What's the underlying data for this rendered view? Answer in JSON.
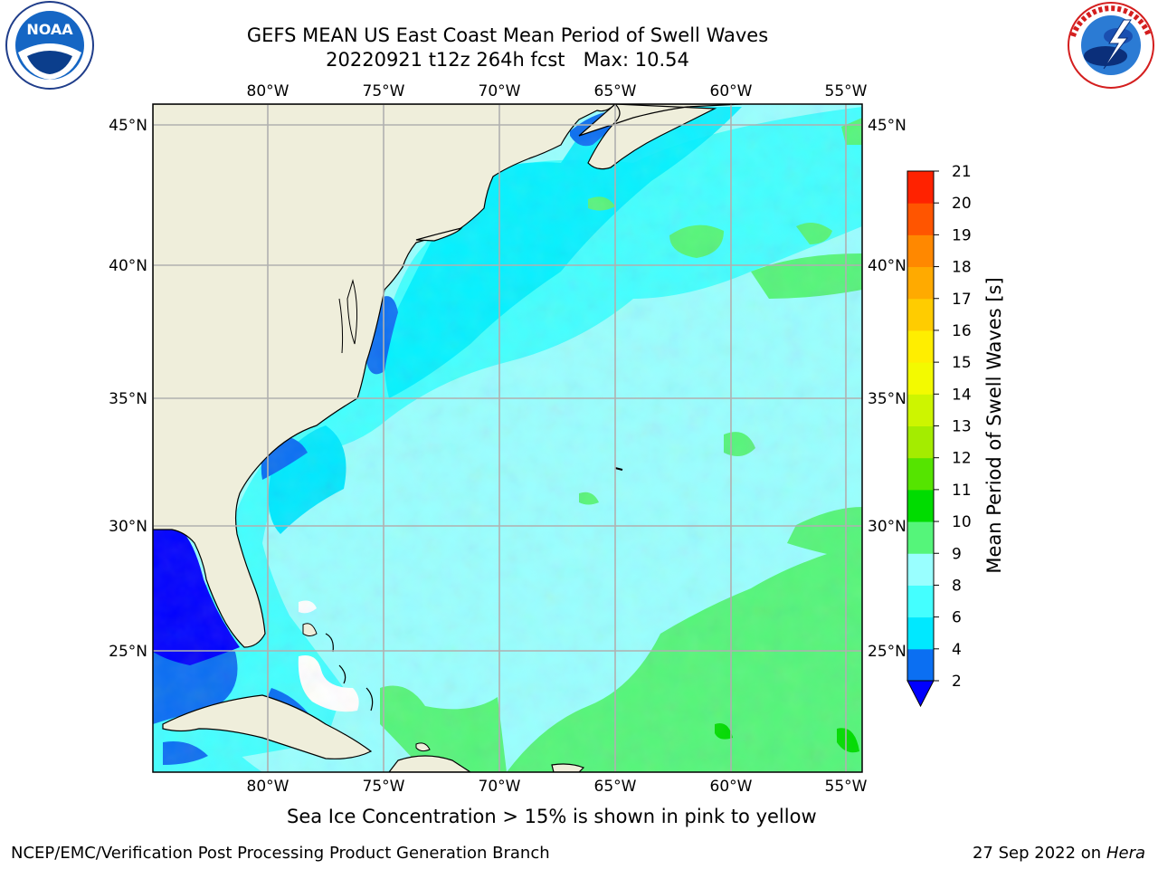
{
  "header": {
    "title_line1": "GEFS MEAN US East Coast Mean Period of Swell Waves",
    "title_line2": "20220921 t12z 264h fcst   Max: 10.54"
  },
  "logos": {
    "left": "noaa-logo",
    "left_text": "NOAA",
    "right": "nws-logo",
    "right_text": "NATIONAL WEATHER SERVICE"
  },
  "map": {
    "lon_labels": [
      "80°W",
      "75°W",
      "70°W",
      "65°W",
      "60°W",
      "55°W"
    ],
    "lat_labels": [
      "45°N",
      "40°N",
      "35°N",
      "30°N",
      "25°N"
    ],
    "colors": {
      "land": "#efeedb",
      "ocean_base": "#99ffff",
      "coast": "#000000",
      "grid": "#b0b0b0"
    }
  },
  "colorbar": {
    "label": "Mean Period of Swell Waves [s]",
    "ticks": [
      "2",
      "4",
      "6",
      "8",
      "9",
      "10",
      "11",
      "12",
      "13",
      "14",
      "15",
      "16",
      "17",
      "18",
      "19",
      "20",
      "21"
    ],
    "colors": [
      "#0b6ff2",
      "#00e8ff",
      "#44ffff",
      "#99ffff",
      "#55f57a",
      "#00dc00",
      "#55e400",
      "#a4ec00",
      "#cdf500",
      "#f3fa00",
      "#ffee00",
      "#ffcc00",
      "#ffaa00",
      "#ff8800",
      "#ff5500",
      "#ff2200"
    ],
    "under_color": "#0000ff"
  },
  "footer": {
    "note": "Sea Ice Concentration > 15% is shown in pink to yellow",
    "credit_left": "NCEP/EMC/Verification Post Processing Product Generation Branch",
    "credit_date": "27 Sep 2022 on",
    "credit_machine": "Hera"
  }
}
